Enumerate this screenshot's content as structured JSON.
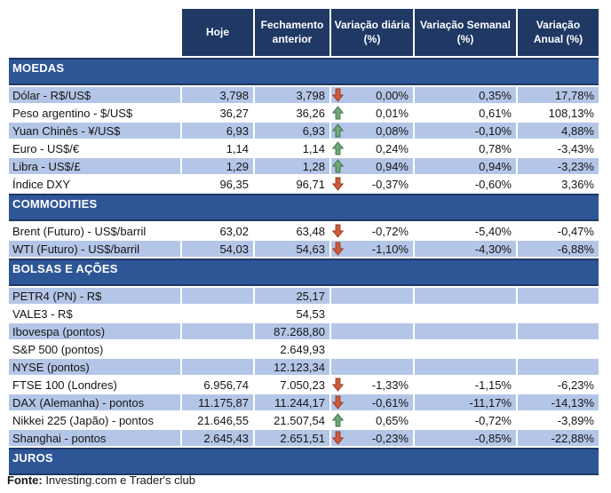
{
  "header": {
    "columns": [
      "Hoje",
      "Fechamento anterior",
      "Variação diária (%)",
      "Variação Semanal (%)",
      "Variação Anual (%)"
    ]
  },
  "sections": [
    {
      "title": "MOEDAS",
      "rows": [
        {
          "label": "Dólar - R$/US$",
          "hoje": "3,798",
          "fechamento": "3,798",
          "arrow": "down",
          "diaria": "0,00%",
          "semanal": "0,35%",
          "anual": "17,78%",
          "shaded": true
        },
        {
          "label": "Peso argentino - $/US$",
          "hoje": "36,27",
          "fechamento": "36,26",
          "arrow": "up",
          "diaria": "0,01%",
          "semanal": "0,61%",
          "anual": "108,13%",
          "shaded": false
        },
        {
          "label": "Yuan Chinês - ¥/US$",
          "hoje": "6,93",
          "fechamento": "6,93",
          "arrow": "up",
          "diaria": "0,08%",
          "semanal": "-0,10%",
          "anual": "4,88%",
          "shaded": true
        },
        {
          "label": "Euro - US$/€",
          "hoje": "1,14",
          "fechamento": "1,14",
          "arrow": "up",
          "diaria": "0,24%",
          "semanal": "0,78%",
          "anual": "-3,43%",
          "shaded": false
        },
        {
          "label": "Libra - US$/£",
          "hoje": "1,29",
          "fechamento": "1,28",
          "arrow": "up",
          "diaria": "0,94%",
          "semanal": "0,94%",
          "anual": "-3,23%",
          "shaded": true
        },
        {
          "label": "Índice DXY",
          "hoje": "96,35",
          "fechamento": "96,71",
          "arrow": "down",
          "diaria": "-0,37%",
          "semanal": "-0,60%",
          "anual": "3,36%",
          "shaded": false
        }
      ]
    },
    {
      "title": "COMMODITIES",
      "rows": [
        {
          "label": "Brent (Futuro) - US$/barril",
          "hoje": "63,02",
          "fechamento": "63,48",
          "arrow": "down",
          "diaria": "-0,72%",
          "semanal": "-5,40%",
          "anual": "-0,47%",
          "shaded": false
        },
        {
          "label": "WTI (Futuro) - US$/barril",
          "hoje": "54,03",
          "fechamento": "54,63",
          "arrow": "down",
          "diaria": "-1,10%",
          "semanal": "-4,30%",
          "anual": "-6,88%",
          "shaded": true
        }
      ]
    },
    {
      "title": "BOLSAS E AÇÕES",
      "rows": [
        {
          "label": "PETR4 (PN) - R$",
          "hoje": "",
          "fechamento": "25,17",
          "arrow": null,
          "diaria": "",
          "semanal": "",
          "anual": "",
          "shaded": true
        },
        {
          "label": "VALE3 - R$",
          "hoje": "",
          "fechamento": "54,53",
          "arrow": null,
          "diaria": "",
          "semanal": "",
          "anual": "",
          "shaded": false
        },
        {
          "label": "Ibovespa (pontos)",
          "hoje": "",
          "fechamento": "87.268,80",
          "arrow": null,
          "diaria": "",
          "semanal": "",
          "anual": "",
          "shaded": true
        },
        {
          "label": "S&P 500 (pontos)",
          "hoje": "",
          "fechamento": "2.649,93",
          "arrow": null,
          "diaria": "",
          "semanal": "",
          "anual": "",
          "shaded": false
        },
        {
          "label": "NYSE (pontos)",
          "hoje": "",
          "fechamento": "12.123,34",
          "arrow": null,
          "diaria": "",
          "semanal": "",
          "anual": "",
          "shaded": true
        },
        {
          "label": "FTSE 100 (Londres)",
          "hoje": "6.956,74",
          "fechamento": "7.050,23",
          "arrow": "down",
          "diaria": "-1,33%",
          "semanal": "-1,15%",
          "anual": "-6,23%",
          "shaded": false
        },
        {
          "label": "DAX (Alemanha) - pontos",
          "hoje": "11.175,87",
          "fechamento": "11.244,17",
          "arrow": "down",
          "diaria": "-0,61%",
          "semanal": "-11,17%",
          "anual": "-14,13%",
          "shaded": true
        },
        {
          "label": "Nikkei 225 (Japão) - pontos",
          "hoje": "21.646,55",
          "fechamento": "21.507,54",
          "arrow": "up",
          "diaria": "0,65%",
          "semanal": "-0,72%",
          "anual": "-3,89%",
          "shaded": false
        },
        {
          "label": "Shanghai - pontos",
          "hoje": "2.645,43",
          "fechamento": "2.651,51",
          "arrow": "down",
          "diaria": "-0,23%",
          "semanal": "-0,85%",
          "anual": "-22,88%",
          "shaded": true
        }
      ]
    },
    {
      "title": "JUROS",
      "rows": []
    }
  ],
  "footer": {
    "label": "Fonte:",
    "text": " Investing.com e Trader's club"
  },
  "colors": {
    "header_navy": "#1F3864",
    "section_blue": "#2E5697",
    "shaded_row_blue": "#B4C6E7",
    "arrow_up_fill": "#6FA97B",
    "arrow_up_stroke": "#3F7048",
    "arrow_down_fill": "#CE5B3C",
    "arrow_down_stroke": "#9A3B22"
  }
}
